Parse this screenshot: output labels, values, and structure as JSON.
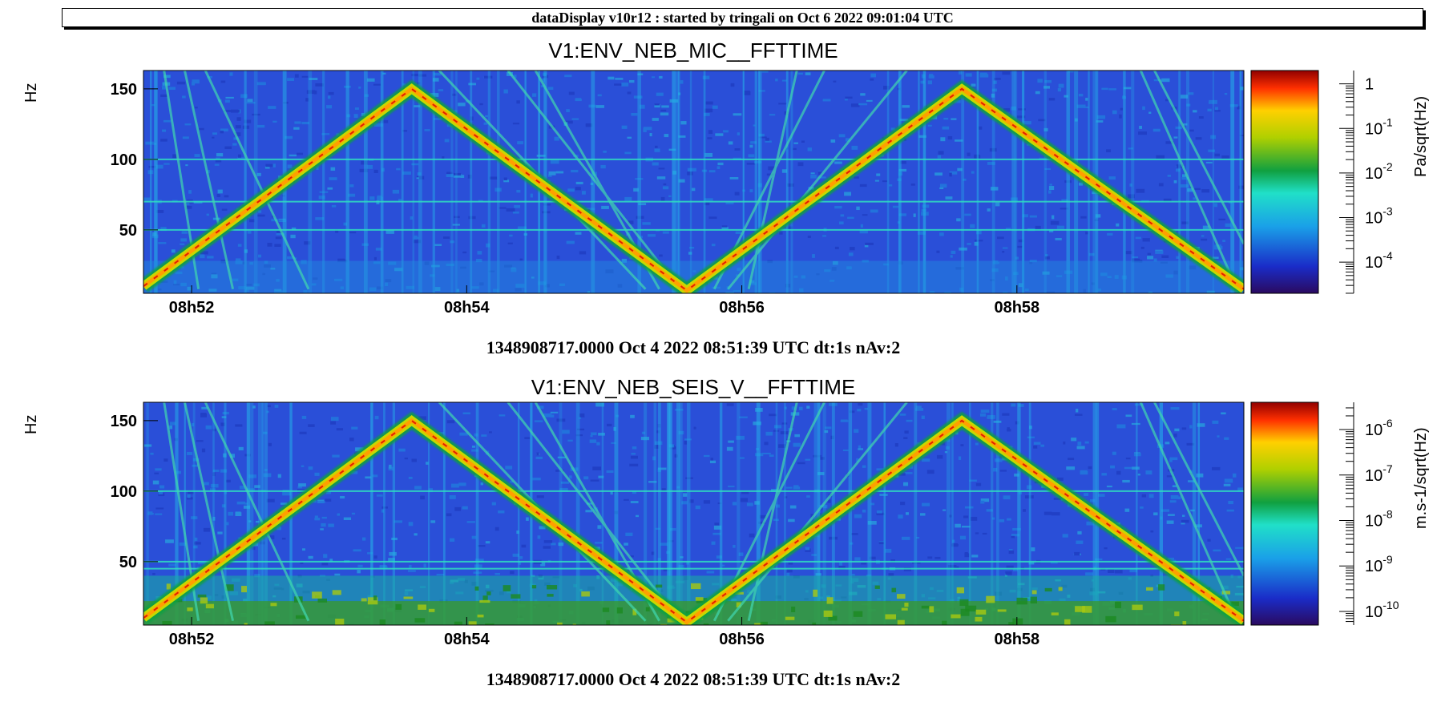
{
  "header": {
    "title": "dataDisplay v10r12 : started by tringali on Oct  6 2022 09:01:04 UTC"
  },
  "chart_data": [
    {
      "type": "heatmap",
      "title": "V1:ENV_NEB_MIC__FFTTIME",
      "ylabel": "Hz",
      "xlabel": "1348908717.0000 Oct 4 2022 08:51:39 UTC dt:1s nAv:2",
      "colorbar_label": "Pa/sqrt(Hz)",
      "x_ticks": [
        "08h52",
        "08h54",
        "08h56",
        "08h58"
      ],
      "y_ticks": [
        50,
        100,
        150
      ],
      "ylim": [
        5,
        163
      ],
      "xlim_minutes": [
        51.65,
        59.65
      ],
      "colorbar": {
        "scale": "log",
        "range_exponents": [
          -4.7,
          0.3
        ],
        "ticks": [
          {
            "base": "1",
            "exp": ""
          },
          {
            "base": "10",
            "exp": "-1"
          },
          {
            "base": "10",
            "exp": "-2"
          },
          {
            "base": "10",
            "exp": "-3"
          },
          {
            "base": "10",
            "exp": "-4"
          }
        ]
      },
      "features": {
        "sweep_vertices": [
          [
            51.65,
            10
          ],
          [
            53.6,
            150
          ],
          [
            55.6,
            7
          ],
          [
            57.6,
            150
          ],
          [
            59.65,
            8
          ]
        ],
        "lines_hz": [
          50,
          70,
          100
        ]
      },
      "colors": {
        "background": "#2a4fd8"
      }
    },
    {
      "type": "heatmap",
      "title": "V1:ENV_NEB_SEIS_V__FFTTIME",
      "ylabel": "Hz",
      "xlabel": "1348908717.0000 Oct 4 2022 08:51:39 UTC dt:1s nAv:2",
      "colorbar_label": "m.s-1/sqrt(Hz)",
      "x_ticks": [
        "08h52",
        "08h54",
        "08h56",
        "08h58"
      ],
      "y_ticks": [
        50,
        100,
        150
      ],
      "ylim": [
        5,
        163
      ],
      "xlim_minutes": [
        51.65,
        59.65
      ],
      "colorbar": {
        "scale": "log",
        "range_exponents": [
          -10.3,
          -5.4
        ],
        "ticks": [
          {
            "base": "10",
            "exp": "-6"
          },
          {
            "base": "10",
            "exp": "-7"
          },
          {
            "base": "10",
            "exp": "-8"
          },
          {
            "base": "10",
            "exp": "-9"
          },
          {
            "base": "10",
            "exp": "-10"
          }
        ]
      },
      "features": {
        "sweep_vertices": [
          [
            51.65,
            10
          ],
          [
            53.6,
            150
          ],
          [
            55.6,
            7
          ],
          [
            57.6,
            150
          ],
          [
            59.65,
            8
          ]
        ],
        "lines_hz": [
          50,
          45,
          100
        ]
      },
      "colors": {
        "background": "#2a4fd8"
      }
    }
  ]
}
